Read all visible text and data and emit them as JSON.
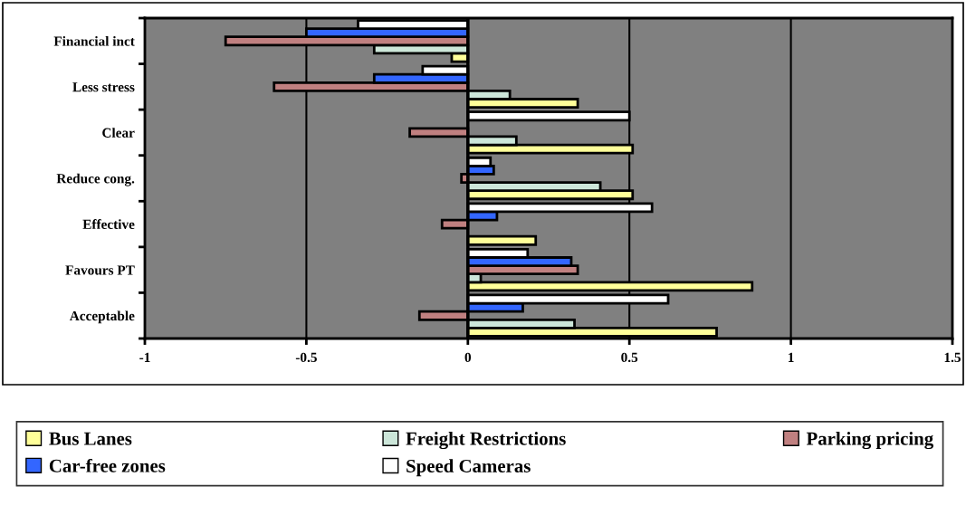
{
  "chart_data": {
    "type": "bar",
    "orientation": "horizontal",
    "categories": [
      "Financial inct",
      "Less stress",
      "Clear",
      "Reduce cong.",
      "Effective",
      "Favours PT",
      "Acceptable"
    ],
    "series": [
      {
        "name": "Bus Lanes",
        "color": "#ffff99",
        "values": [
          -0.05,
          0.34,
          0.51,
          0.51,
          0.21,
          0.88,
          0.77
        ]
      },
      {
        "name": "Freight Restrictions",
        "color": "#cce6d9",
        "values": [
          -0.29,
          0.13,
          0.15,
          0.41,
          null,
          0.04,
          0.33
        ]
      },
      {
        "name": "Parking pricing",
        "color": "#c08080",
        "values": [
          -0.75,
          -0.6,
          -0.18,
          -0.02,
          -0.08,
          0.34,
          -0.15
        ]
      },
      {
        "name": "Car-free zones",
        "color": "#3366ff",
        "values": [
          -0.5,
          -0.29,
          null,
          0.08,
          0.09,
          0.32,
          0.17
        ]
      },
      {
        "name": "Speed Cameras",
        "color": "#ffffff",
        "values": [
          -0.34,
          -0.14,
          0.5,
          0.07,
          0.57,
          0.185,
          0.62
        ]
      }
    ],
    "xlim": [
      -1,
      1.5
    ],
    "xticks": [
      -1,
      -0.5,
      0,
      0.5,
      1,
      1.5
    ],
    "grid": "x",
    "legend": "bottom"
  }
}
